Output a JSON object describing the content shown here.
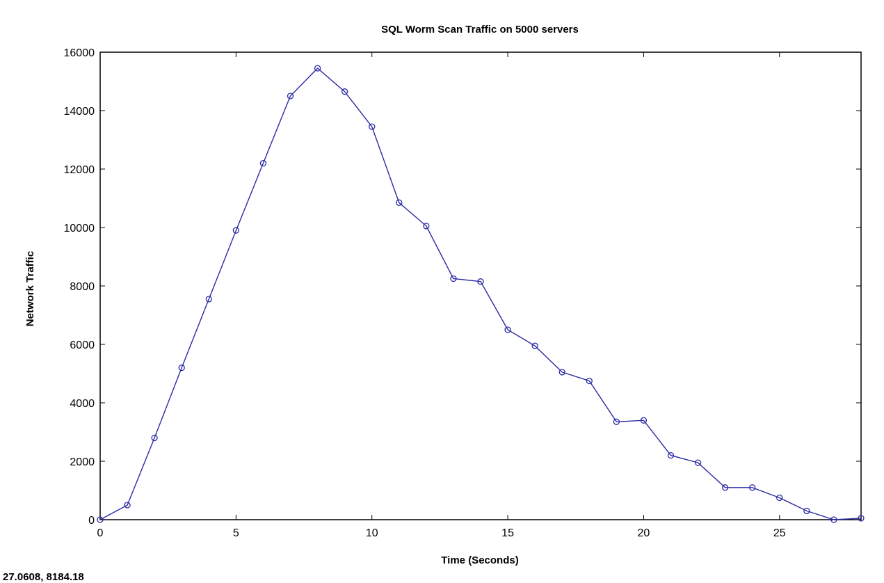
{
  "chart_data": {
    "type": "line",
    "title": "SQL Worm Scan Traffic on 5000 servers",
    "xlabel": "Time (Seconds)",
    "ylabel": "Network Traffic",
    "xlim": [
      0,
      28
    ],
    "ylim": [
      0,
      16000
    ],
    "x_ticks": [
      0,
      5,
      10,
      15,
      20,
      25
    ],
    "y_ticks": [
      0,
      2000,
      4000,
      6000,
      8000,
      10000,
      12000,
      14000,
      16000
    ],
    "grid": false,
    "marker": "circle",
    "series": [
      {
        "color": "#2a2aa5",
        "x": [
          0,
          1,
          2,
          3,
          4,
          5,
          6,
          7,
          8,
          9,
          10,
          11,
          12,
          13,
          14,
          15,
          16,
          17,
          18,
          19,
          20,
          21,
          22,
          23,
          24,
          25,
          26,
          27,
          28
        ],
        "y": [
          0,
          500,
          2800,
          5200,
          7550,
          9900,
          12200,
          14500,
          15450,
          14650,
          13450,
          10850,
          10050,
          8250,
          8150,
          6500,
          5950,
          5050,
          4750,
          3350,
          3400,
          2200,
          1950,
          1100,
          1100,
          750,
          300,
          0,
          50
        ]
      }
    ]
  },
  "cursor_readout": "27.0608,  8184.18"
}
